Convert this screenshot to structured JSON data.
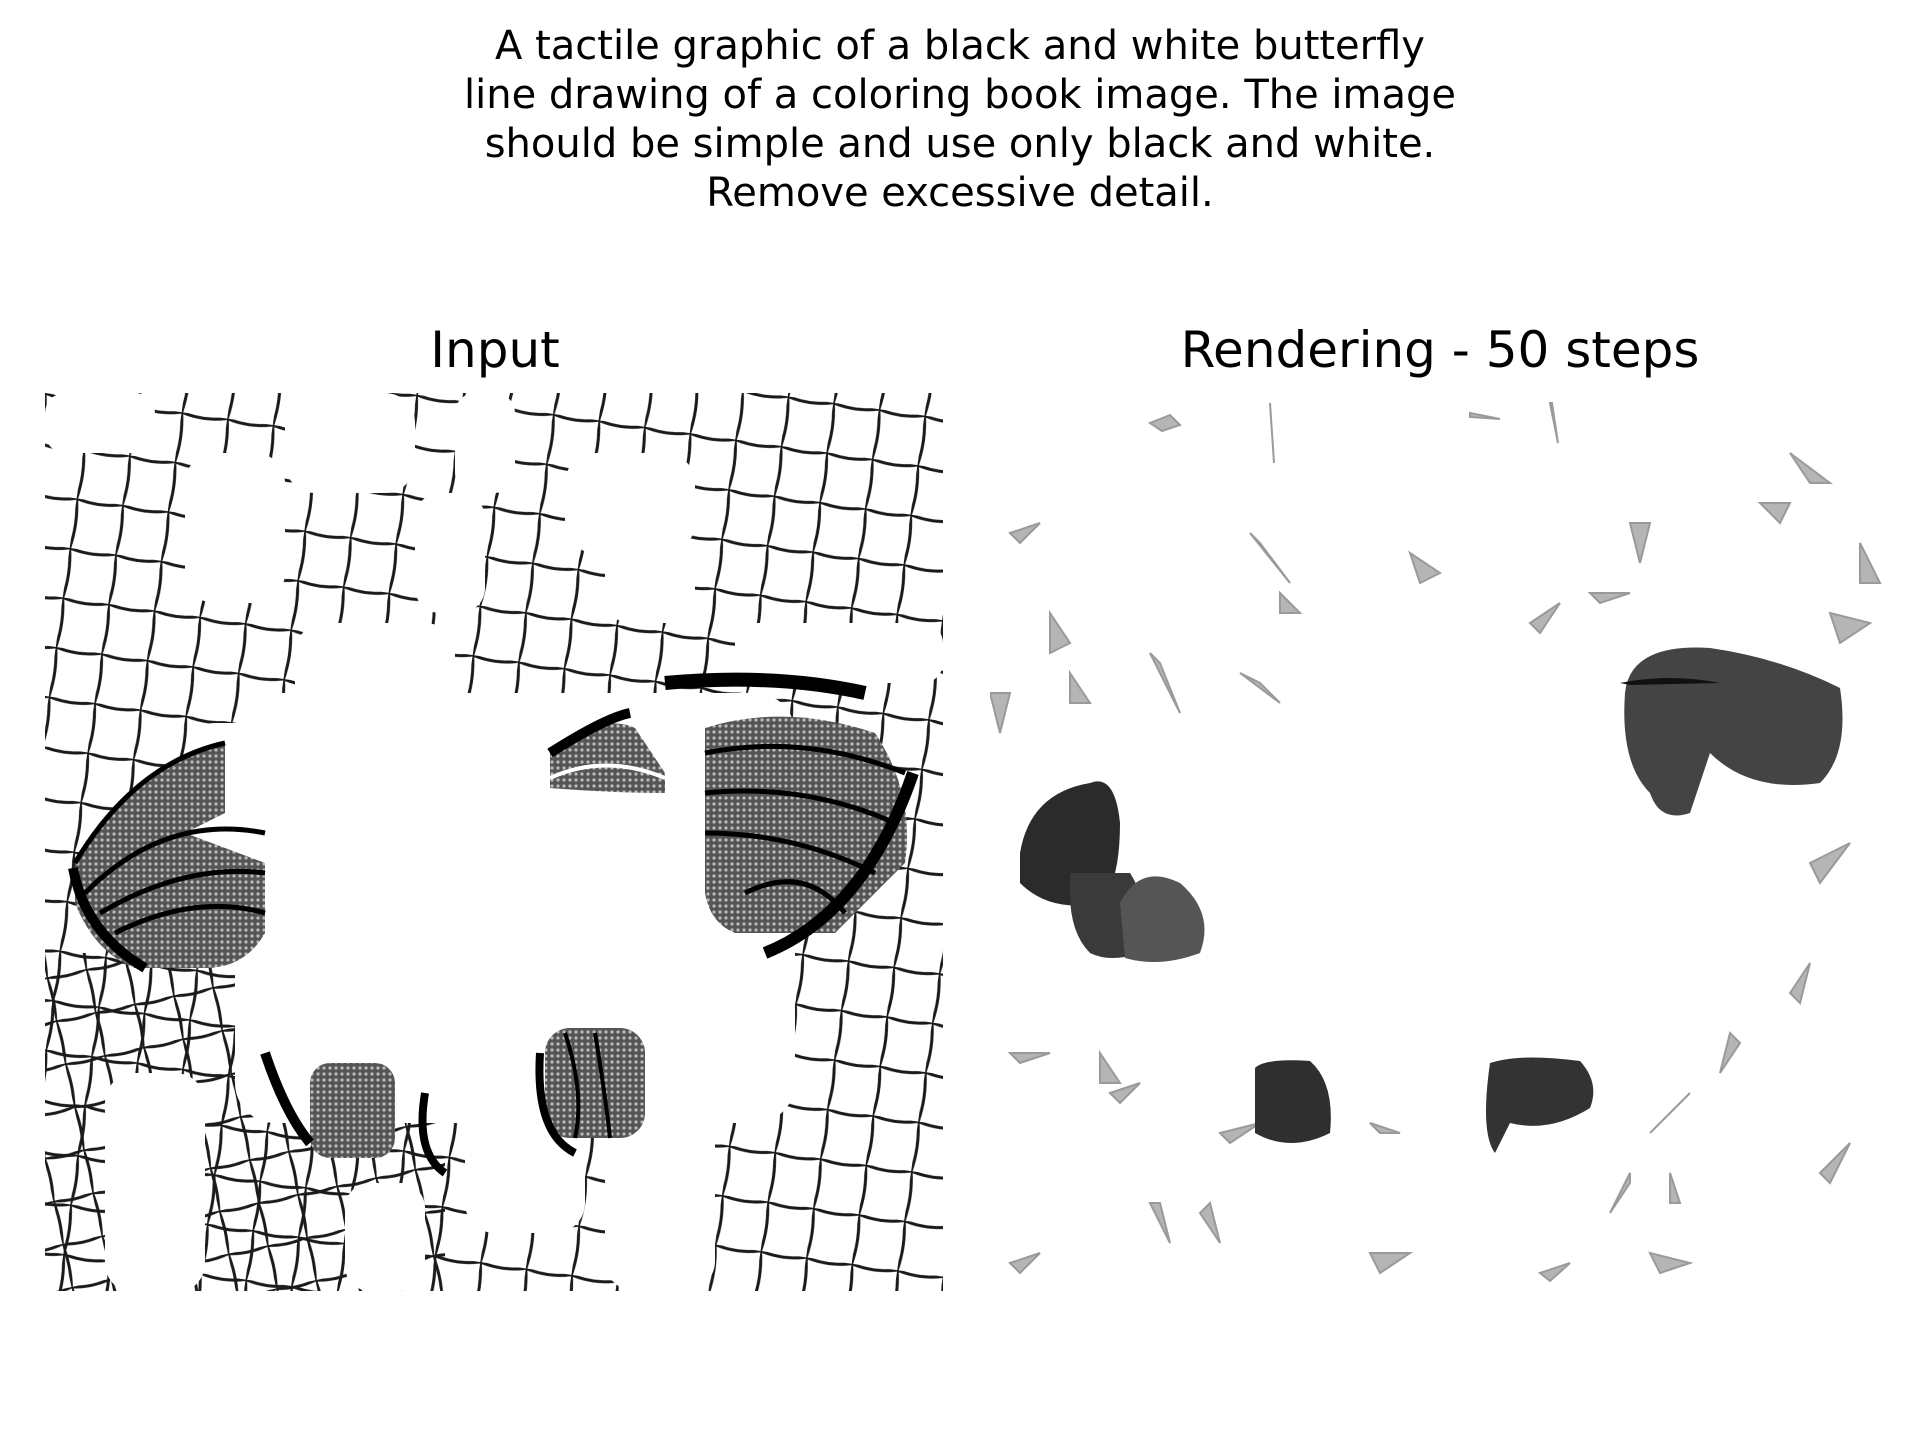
{
  "caption": {
    "lines": [
      "A tactile graphic of a black and white butterfly",
      "line drawing of a coloring book image. The image",
      "should be simple and use only black and white.",
      "Remove excessive detail."
    ]
  },
  "panels": [
    {
      "title": "Input"
    },
    {
      "title": "Rendering - 50 steps"
    }
  ],
  "colors": {
    "ink": "#000000",
    "wing_dark": "#2b2b2b",
    "blob_gray": "#3a3a3a",
    "fragment_gray": "#b5b5b5",
    "background": "#ffffff"
  }
}
